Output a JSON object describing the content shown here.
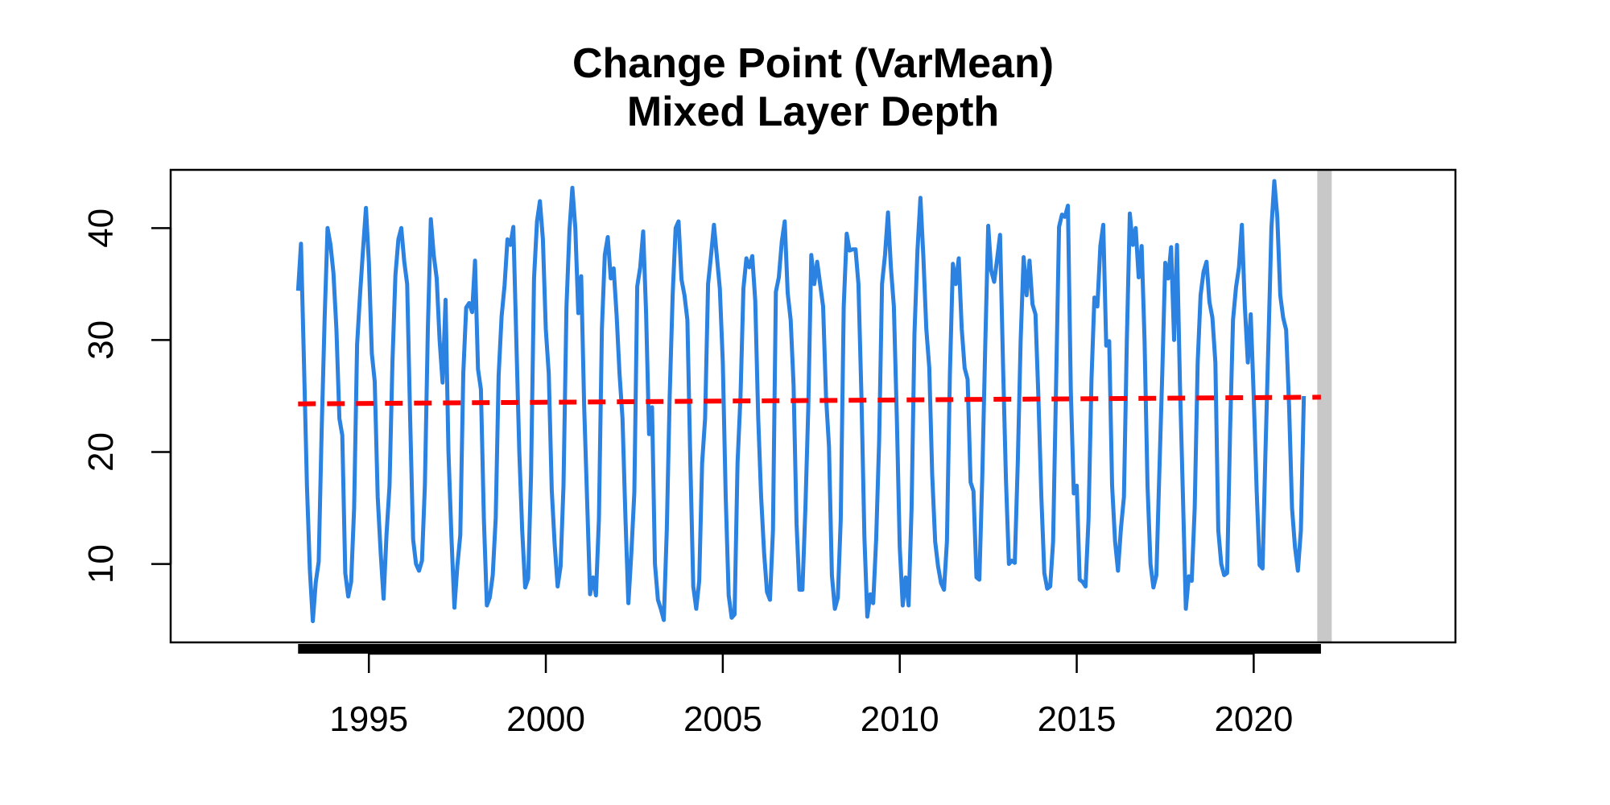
{
  "chart_data": {
    "type": "line",
    "title": "Change Point (VarMean)",
    "subtitle": "Mixed Layer Depth",
    "xlabel": "",
    "ylabel": "",
    "xlim": [
      1989.4,
      2025.7
    ],
    "ylim": [
      3,
      45.2
    ],
    "x_ticks": [
      1995,
      2000,
      2005,
      2010,
      2015,
      2020
    ],
    "x_tick_labels": [
      "1995",
      "2000",
      "2005",
      "2010",
      "2015",
      "2020"
    ],
    "y_ticks": [
      10,
      20,
      30,
      40
    ],
    "y_tick_labels": [
      "10",
      "20",
      "30",
      "40"
    ],
    "grid": false,
    "legend": "none",
    "series": [
      {
        "color": "#2b82e0",
        "style": "solid",
        "x_start": 1993.0,
        "x_step": 0.0833333,
        "values": [
          34.4,
          38.6,
          28.0,
          17.0,
          9.5,
          4.9,
          8.4,
          10.2,
          22.0,
          32.0,
          40.0,
          38.5,
          36.0,
          31.0,
          23.0,
          21.5,
          9.2,
          7.1,
          8.4,
          15.0,
          29.6,
          34.0,
          38.0,
          41.8,
          37.0,
          28.8,
          26.3,
          16.0,
          11.0,
          6.9,
          12.7,
          17.0,
          28.0,
          35.8,
          39.0,
          40.0,
          37.0,
          35.0,
          23.0,
          12.2,
          10.0,
          9.4,
          10.3,
          17.0,
          31.0,
          40.8,
          37.6,
          35.5,
          30.0,
          26.2,
          33.6,
          20.0,
          12.4,
          6.1,
          9.8,
          12.6,
          27.0,
          32.9,
          33.3,
          32.5,
          37.1,
          27.4,
          25.6,
          14.0,
          6.3,
          7.0,
          9.0,
          14.1,
          26.8,
          32.1,
          34.9,
          39.0,
          38.5,
          40.1,
          30.0,
          20.0,
          13.0,
          7.9,
          8.7,
          18.0,
          35.5,
          40.6,
          42.4,
          39.0,
          31.0,
          27.0,
          16.6,
          11.8,
          8.0,
          9.8,
          17.0,
          33.0,
          39.8,
          43.6,
          40.0,
          32.4,
          35.7,
          24.0,
          15.8,
          7.3,
          8.8,
          7.2,
          14.0,
          31.0,
          37.6,
          39.2,
          35.5,
          36.4,
          32.2,
          27.0,
          23.0,
          14.0,
          6.5,
          11.0,
          16.4,
          34.8,
          36.5,
          39.7,
          32.4,
          21.6,
          24.0,
          10.0,
          6.8,
          6.0,
          5.0,
          13.0,
          25.0,
          34.0,
          40.0,
          40.6,
          35.4,
          34.0,
          31.8,
          19.0,
          8.0,
          6.0,
          8.5,
          19.0,
          23.0,
          35.0,
          37.5,
          40.3,
          37.4,
          34.6,
          28.0,
          16.0,
          7.2,
          5.2,
          5.5,
          19.0,
          25.0,
          34.6,
          37.3,
          36.5,
          37.5,
          33.5,
          23.0,
          16.0,
          11.0,
          7.5,
          6.8,
          13.0,
          34.3,
          35.6,
          38.8,
          40.6,
          34.2,
          31.8,
          26.0,
          13.6,
          7.7,
          7.7,
          15.0,
          24.0,
          37.6,
          35.0,
          37.0,
          35.0,
          33.0,
          25.0,
          20.5,
          9.0,
          6.0,
          7.0,
          14.0,
          33.0,
          39.5,
          38.0,
          38.1,
          38.1,
          35.0,
          25.0,
          12.4,
          5.3,
          7.3,
          6.5,
          12.2,
          21.0,
          35.0,
          37.6,
          41.4,
          36.5,
          33.0,
          23.0,
          11.5,
          6.3,
          8.8,
          6.3,
          15.0,
          30.6,
          38.0,
          42.7,
          37.5,
          31.0,
          27.5,
          18.0,
          12.0,
          9.8,
          8.3,
          7.7,
          12.0,
          27.0,
          36.8,
          35.0,
          37.3,
          31.0,
          27.5,
          26.5,
          17.3,
          16.5,
          8.8,
          8.6,
          18.0,
          29.8,
          40.2,
          36.2,
          35.2,
          37.2,
          39.4,
          27.8,
          17.6,
          10.0,
          10.3,
          10.1,
          19.0,
          30.0,
          37.4,
          34.0,
          37.1,
          33.2,
          32.3,
          25.0,
          16.0,
          9.2,
          7.8,
          8.0,
          12.0,
          26.0,
          40.1,
          41.2,
          41.0,
          42.0,
          25.5,
          16.3,
          17.0,
          8.6,
          8.4,
          8.0,
          14.0,
          26.5,
          33.8,
          33.0,
          38.4,
          40.3,
          29.5,
          29.9,
          17.0,
          12.0,
          9.4,
          13.2,
          16.0,
          30.0,
          41.3,
          38.5,
          40.0,
          35.6,
          38.4,
          30.0,
          17.0,
          10.0,
          7.9,
          9.0,
          18.0,
          27.0,
          36.9,
          35.5,
          38.3,
          30.0,
          38.5,
          26.0,
          16.0,
          6.0,
          8.9,
          8.5,
          15.0,
          28.0,
          34.0,
          36.1,
          37.0,
          33.4,
          32.0,
          28.0,
          13.0,
          10.0,
          9.0,
          9.2,
          22.0,
          31.8,
          34.7,
          36.5,
          40.3,
          33.0,
          28.0,
          32.3,
          25.0,
          16.5,
          9.9,
          9.6,
          20.0,
          29.8,
          40.0,
          44.2,
          41.0,
          34.0,
          32.0,
          30.9,
          24.0,
          15.0,
          11.5,
          9.4,
          13.0,
          25.0
        ]
      },
      {
        "color": "#ff0000",
        "style": "dashed",
        "x": [
          1993.0,
          2021.9
        ],
        "y": [
          24.3,
          24.9
        ]
      }
    ],
    "annotations": [
      {
        "type": "vertical-band",
        "color": "#c8c8c8",
        "x": 2022.0
      },
      {
        "type": "rug",
        "color": "#000000",
        "x_from": 1993.0,
        "x_to": 2021.9
      }
    ]
  }
}
